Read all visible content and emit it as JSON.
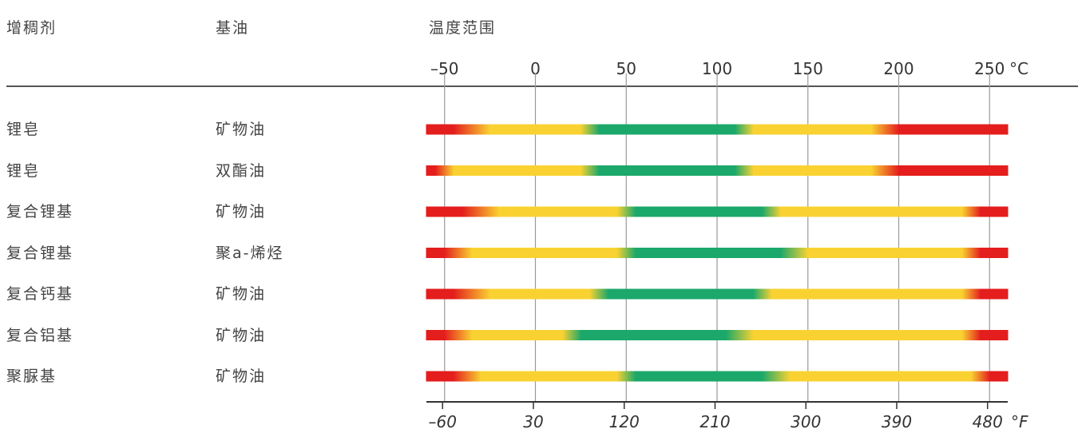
{
  "headers": {
    "thickener": "增稠剂",
    "base_oil": "基油",
    "temp_range": "温度范围"
  },
  "chart_data": {
    "type": "bar",
    "categories": [
      "锂皂",
      "锂皂",
      "复合锂基",
      "复合锂基",
      "复合钙基",
      "复合铝基",
      "聚脲基"
    ],
    "base_oils": [
      "矿物油",
      "双酯油",
      "矿物油",
      "聚a-烯烃",
      "矿物油",
      "矿物油",
      "矿物油"
    ],
    "x_unit_top": "°C",
    "x_unit_bottom": "°F",
    "xlim": [
      -60,
      260
    ],
    "celsius_ticks": [
      -50,
      0,
      50,
      100,
      150,
      200,
      250
    ],
    "celsius_tick_labels": [
      "–50",
      "0",
      "50",
      "100",
      "150",
      "200",
      "250"
    ],
    "fahrenheit_ticks": [
      -60,
      30,
      120,
      210,
      300,
      390,
      480
    ],
    "fahrenheit_tick_labels": [
      "–60",
      "30",
      "120",
      "210",
      "300",
      "390",
      "480"
    ],
    "grid": true,
    "colors": {
      "unsuitable": "#e41d1d",
      "limited": "#f9d232",
      "suitable": "#1ba86a"
    },
    "series": [
      {
        "segments": [
          [
            -60,
            -45,
            "red"
          ],
          [
            -45,
            -25,
            "red-yellow"
          ],
          [
            -25,
            25,
            "yellow"
          ],
          [
            25,
            35,
            "yellow-green"
          ],
          [
            35,
            110,
            "green"
          ],
          [
            110,
            120,
            "green-yellow"
          ],
          [
            120,
            185,
            "yellow"
          ],
          [
            185,
            200,
            "yellow-red"
          ],
          [
            200,
            260,
            "red"
          ]
        ]
      },
      {
        "segments": [
          [
            -60,
            -55,
            "red"
          ],
          [
            -55,
            -45,
            "red-yellow"
          ],
          [
            -45,
            25,
            "yellow"
          ],
          [
            25,
            35,
            "yellow-green"
          ],
          [
            35,
            110,
            "green"
          ],
          [
            110,
            120,
            "green-yellow"
          ],
          [
            120,
            185,
            "yellow"
          ],
          [
            185,
            200,
            "yellow-red"
          ],
          [
            200,
            260,
            "red"
          ]
        ]
      },
      {
        "segments": [
          [
            -60,
            -40,
            "red"
          ],
          [
            -40,
            -20,
            "red-yellow"
          ],
          [
            -20,
            45,
            "yellow"
          ],
          [
            45,
            55,
            "yellow-green"
          ],
          [
            55,
            125,
            "green"
          ],
          [
            125,
            135,
            "green-yellow"
          ],
          [
            135,
            235,
            "yellow"
          ],
          [
            235,
            245,
            "yellow-red"
          ],
          [
            245,
            260,
            "red"
          ]
        ]
      },
      {
        "segments": [
          [
            -60,
            -50,
            "red"
          ],
          [
            -50,
            -35,
            "red-yellow"
          ],
          [
            -35,
            45,
            "yellow"
          ],
          [
            45,
            55,
            "yellow-green"
          ],
          [
            55,
            135,
            "green"
          ],
          [
            135,
            150,
            "green-yellow"
          ],
          [
            150,
            235,
            "yellow"
          ],
          [
            235,
            245,
            "yellow-red"
          ],
          [
            245,
            260,
            "red"
          ]
        ]
      },
      {
        "segments": [
          [
            -60,
            -45,
            "red"
          ],
          [
            -45,
            -25,
            "red-yellow"
          ],
          [
            -25,
            30,
            "yellow"
          ],
          [
            30,
            40,
            "yellow-green"
          ],
          [
            40,
            120,
            "green"
          ],
          [
            120,
            130,
            "green-yellow"
          ],
          [
            130,
            235,
            "yellow"
          ],
          [
            235,
            245,
            "yellow-red"
          ],
          [
            245,
            260,
            "red"
          ]
        ]
      },
      {
        "segments": [
          [
            -60,
            -50,
            "red"
          ],
          [
            -50,
            -35,
            "red-yellow"
          ],
          [
            -35,
            15,
            "yellow"
          ],
          [
            15,
            25,
            "yellow-green"
          ],
          [
            25,
            105,
            "green"
          ],
          [
            105,
            120,
            "green-yellow"
          ],
          [
            120,
            235,
            "yellow"
          ],
          [
            235,
            245,
            "yellow-red"
          ],
          [
            245,
            260,
            "red"
          ]
        ]
      },
      {
        "segments": [
          [
            -60,
            -45,
            "red"
          ],
          [
            -45,
            -30,
            "red-yellow"
          ],
          [
            -30,
            45,
            "yellow"
          ],
          [
            45,
            55,
            "yellow-green"
          ],
          [
            55,
            125,
            "green"
          ],
          [
            125,
            140,
            "green-yellow"
          ],
          [
            140,
            240,
            "yellow"
          ],
          [
            240,
            250,
            "yellow-red"
          ],
          [
            250,
            260,
            "red"
          ]
        ]
      }
    ]
  }
}
